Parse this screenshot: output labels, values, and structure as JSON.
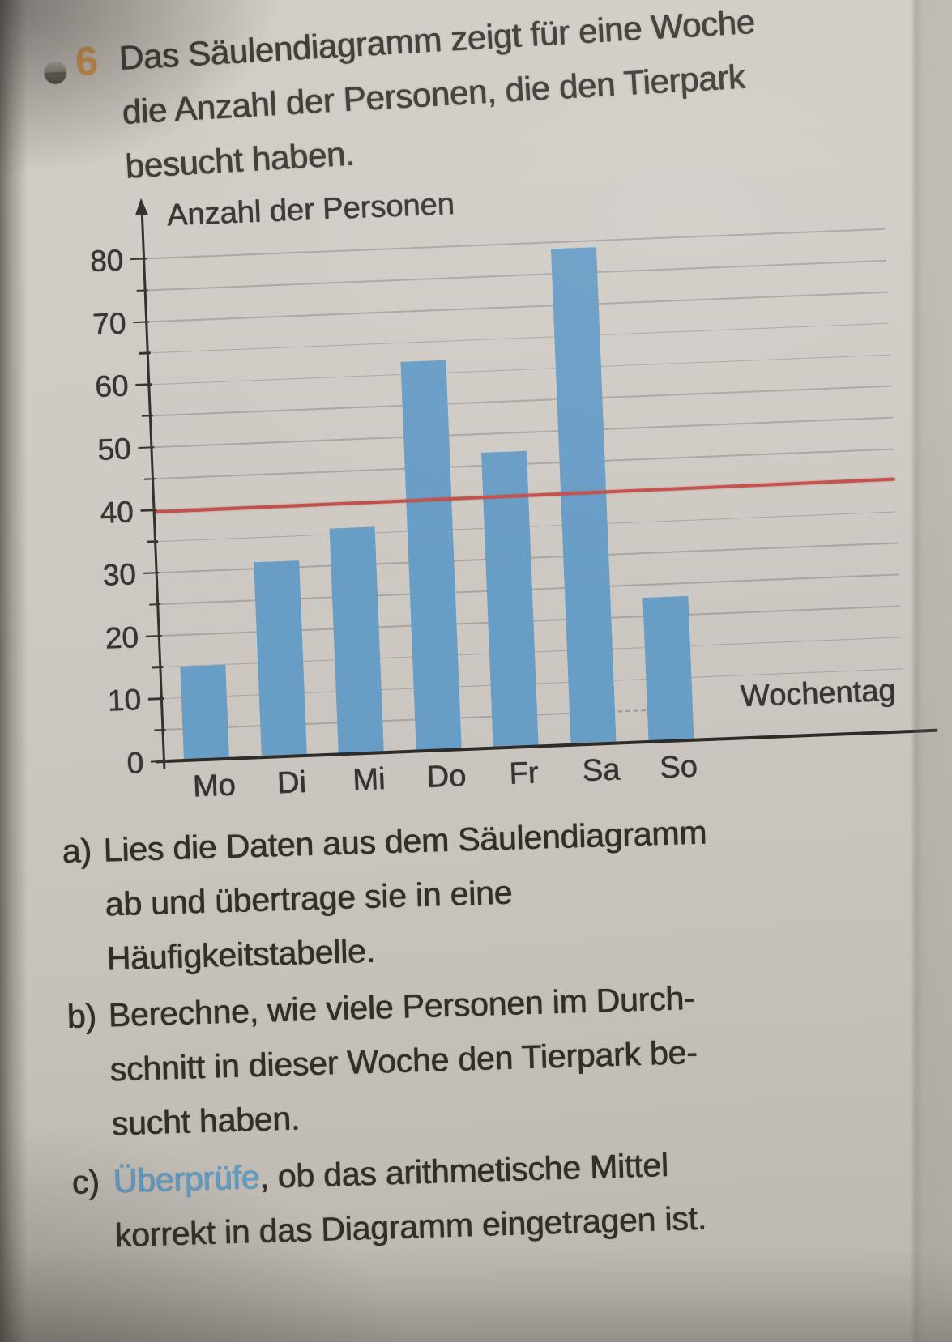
{
  "task": {
    "number": "6",
    "marker_icon": "difficulty-circle-icon",
    "title_lines": [
      "Das Säulendiagramm zeigt für eine Woche",
      "die Anzahl der Personen, die den Tierpark",
      "besucht haben."
    ]
  },
  "chart_data": {
    "type": "bar",
    "title": "",
    "ylabel": "Anzahl der Personen",
    "xlabel": "Wochentag",
    "categories": [
      "Mo",
      "Di",
      "Mi",
      "Do",
      "Fr",
      "Sa",
      "So"
    ],
    "values": [
      15,
      31,
      36,
      62,
      47,
      79,
      23
    ],
    "ylim": [
      0,
      80
    ],
    "ytick_step": 10,
    "grid_step": 5,
    "grid": true,
    "legend": false,
    "annotations": {
      "mean_line_value": 40,
      "mean_line_color": "#c2504b"
    },
    "bar_color": "#689dc6"
  },
  "questions": [
    {
      "label": "a)",
      "lines": [
        "Lies die Daten aus dem Säulendiagramm",
        "ab und übertrage sie in eine",
        "Häufigkeitstabelle."
      ]
    },
    {
      "label": "b)",
      "lines": [
        "Berechne, wie viele Personen im Durch-",
        "schnitt in dieser Woche den Tierpark be-",
        "sucht haben."
      ]
    },
    {
      "label": "c)",
      "highlight": "Überprüfe",
      "lines": [
        ", ob das arithmetische Mittel",
        "korrekt in das Diagramm eingetragen ist."
      ]
    }
  ],
  "colors": {
    "task_number_orange": "#dd9c51",
    "highlight_blue": "#5e9dc8",
    "bar_blue": "#689dc6",
    "mean_line_red": "#c2504b",
    "paper": "#cdc7c1"
  }
}
